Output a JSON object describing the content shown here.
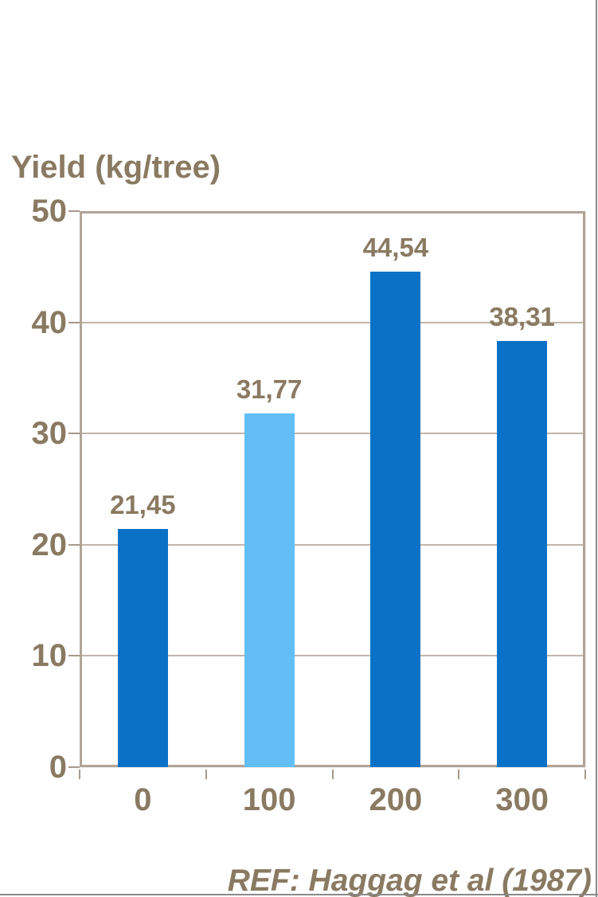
{
  "slide": {
    "background": "#ffffff",
    "edge_line_color": "#8a8a8a"
  },
  "chart_data": {
    "type": "bar",
    "title": "Yield (kg/tree)",
    "categories": [
      "0",
      "100",
      "200",
      "300"
    ],
    "values": [
      21.45,
      31.77,
      44.54,
      38.31
    ],
    "value_labels": [
      "21,45",
      "31,77",
      "44,54",
      "38,31"
    ],
    "bar_colors": [
      "#0a72c6",
      "#63bef7",
      "#0a72c6",
      "#0a72c6"
    ],
    "ylim": [
      0,
      50
    ],
    "yticks": [
      0,
      10,
      20,
      30,
      40,
      50
    ],
    "grid": true,
    "legend_position": "none",
    "xlabel": "",
    "ylabel": "Yield (kg/tree)"
  },
  "footer": {
    "reference": "REF: Haggag et al (1987)"
  },
  "theme": {
    "text_color": "#8a7a62",
    "frame_border_color": "#b1a496",
    "gridline_color": "#bfb6aa",
    "tick_color": "#a59a8b",
    "bar_dark_blue": "#0a72c6",
    "bar_light_blue": "#63bef7"
  }
}
